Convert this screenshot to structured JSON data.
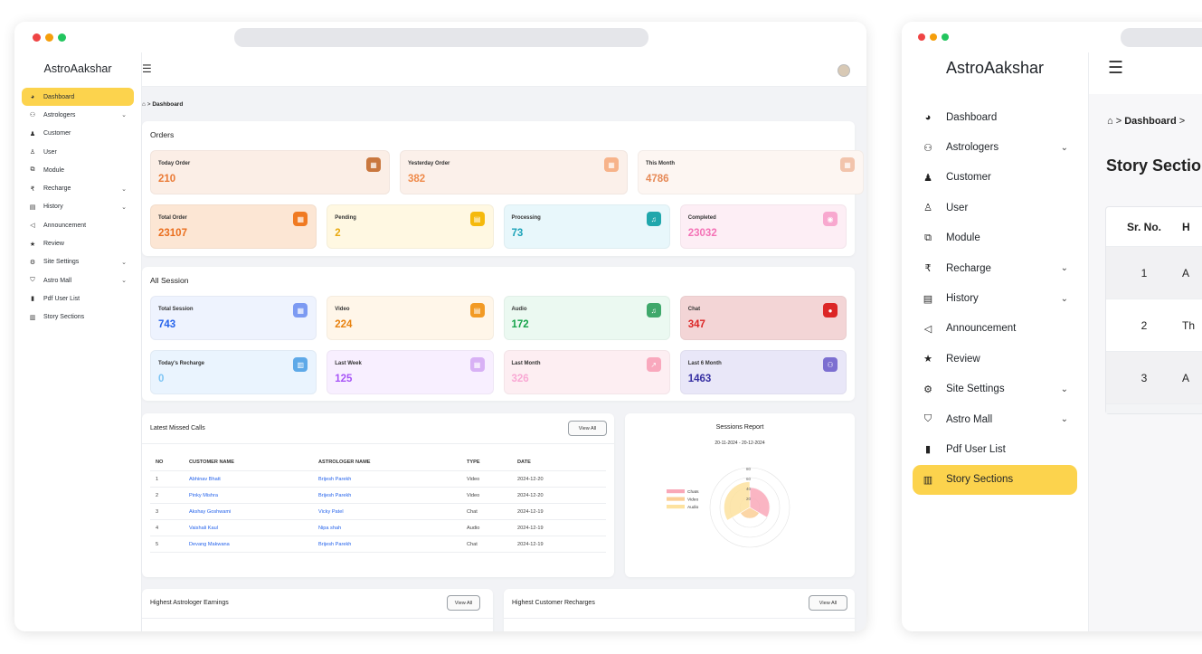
{
  "app": {
    "brand": "AstroAakshar"
  },
  "colors": {
    "accent": "#fcd34d",
    "dot_red": "#ef4444",
    "dot_yellow": "#f59e0b",
    "dot_green": "#22c55e"
  },
  "sidebar": {
    "items": [
      {
        "label": "Dashboard",
        "icon": "dashboard-icon",
        "glyph": "◕",
        "active": true,
        "chevron": false
      },
      {
        "label": "Astrologers",
        "icon": "users-icon",
        "glyph": "⚇",
        "active": false,
        "chevron": true
      },
      {
        "label": "Customer",
        "icon": "user-tie-icon",
        "glyph": "♟",
        "active": false,
        "chevron": false
      },
      {
        "label": "User",
        "icon": "user-icon",
        "glyph": "♙",
        "active": false,
        "chevron": false
      },
      {
        "label": "Module",
        "icon": "sitemap-icon",
        "glyph": "⧉",
        "active": false,
        "chevron": false
      },
      {
        "label": "Recharge",
        "icon": "money-icon",
        "glyph": "₹",
        "active": false,
        "chevron": true
      },
      {
        "label": "History",
        "icon": "history-icon",
        "glyph": "▤",
        "active": false,
        "chevron": true
      },
      {
        "label": "Announcement",
        "icon": "bullhorn-icon",
        "glyph": "◁",
        "active": false,
        "chevron": false
      },
      {
        "label": "Review",
        "icon": "star-icon",
        "glyph": "★",
        "active": false,
        "chevron": false
      },
      {
        "label": "Site Settings",
        "icon": "gear-icon",
        "glyph": "⚙",
        "active": false,
        "chevron": true
      },
      {
        "label": "Astro Mall",
        "icon": "shield-icon",
        "glyph": "⛉",
        "active": false,
        "chevron": true
      },
      {
        "label": "Pdf User List",
        "icon": "file-icon",
        "glyph": "▮",
        "active": false,
        "chevron": false
      },
      {
        "label": "Story Sections",
        "icon": "chart-bar-icon",
        "glyph": "▥",
        "active": false,
        "chevron": false
      }
    ]
  },
  "breadcrumb": {
    "current": "Dashboard",
    "sep": ">"
  },
  "orders": {
    "title": "Orders",
    "row1": [
      {
        "label": "Today Order",
        "value": "210"
      },
      {
        "label": "Yesterday Order",
        "value": "382"
      },
      {
        "label": "This Month",
        "value": "4786"
      }
    ],
    "row2": [
      {
        "label": "Total Order",
        "value": "23107"
      },
      {
        "label": "Pending",
        "value": "2"
      },
      {
        "label": "Processing",
        "value": "73"
      },
      {
        "label": "Completed",
        "value": "23032"
      }
    ]
  },
  "sessions": {
    "title": "All Session",
    "row1": [
      {
        "label": "Total Session",
        "value": "743"
      },
      {
        "label": "Video",
        "value": "224"
      },
      {
        "label": "Audio",
        "value": "172"
      },
      {
        "label": "Chat",
        "value": "347"
      }
    ],
    "row2": [
      {
        "label": "Today's Recharge",
        "value": "0"
      },
      {
        "label": "Last Week",
        "value": "125"
      },
      {
        "label": "Last Month",
        "value": "326"
      },
      {
        "label": "Last 6 Month",
        "value": "1463"
      }
    ]
  },
  "missed_calls": {
    "title": "Latest Missed Calls",
    "view_all": "View All",
    "headers": [
      "NO",
      "CUSTOMER NAME",
      "ASTROLOGER NAME",
      "TYPE",
      "DATE"
    ],
    "rows": [
      [
        "1",
        "Abhinav Bhatt",
        "Brijesh Parekh",
        "Video",
        "2024-12-20"
      ],
      [
        "2",
        "Pinky Mishra",
        "Brijesh Parekh",
        "Video",
        "2024-12-20"
      ],
      [
        "3",
        "Akshay Goshwami",
        "Vicky Patel",
        "Chat",
        "2024-12-19"
      ],
      [
        "4",
        "Vaishali Kaul",
        "Nipa shah",
        "Audio",
        "2024-12-19"
      ],
      [
        "5",
        "Devang Makwana",
        "Brijesh Parekh",
        "Chat",
        "2024-12-19"
      ]
    ]
  },
  "sessions_report": {
    "title": "Sessions Report",
    "range": "20-11-2024 - 20-12-2024"
  },
  "chart_data": {
    "type": "polar-area",
    "title": "Sessions Report",
    "subtitle": "20-11-2024 - 20-12-2024",
    "categories": [
      "Chats",
      "Video",
      "Audio"
    ],
    "values": [
      40,
      22,
      52
    ],
    "colors": [
      "#f9a8b8",
      "#fbcf96",
      "#fde29f"
    ],
    "radial_ticks": [
      20,
      40,
      60,
      80
    ],
    "rlim": [
      0,
      80
    ],
    "legend_position": "left"
  },
  "earnings": {
    "title": "Highest Astrologer Earnings",
    "view_all": "View All"
  },
  "recharges": {
    "title": "Highest Customer Recharges",
    "view_all": "View All"
  },
  "w2": {
    "breadcrumb_current": "Dashboard",
    "page_title": "Story Sectio",
    "table": {
      "headers": [
        "Sr. No.",
        "H"
      ],
      "rows": [
        [
          "1",
          "A"
        ],
        [
          "2",
          "Th"
        ],
        [
          "3",
          "A"
        ]
      ]
    }
  }
}
